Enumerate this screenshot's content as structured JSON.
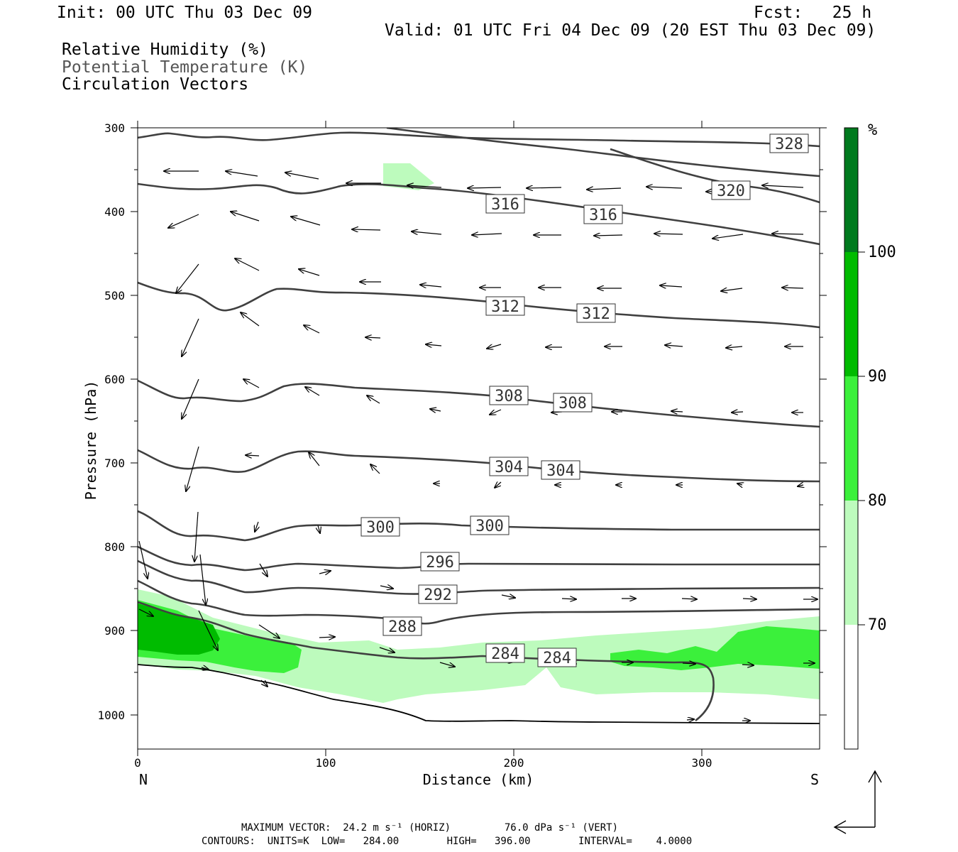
{
  "header": {
    "init": "Init: 00 UTC Thu 03 Dec 09",
    "fcst": "Fcst:   25 h",
    "valid": "Valid: 01 UTC Fri 04 Dec 09 (20 EST Thu 03 Dec 09)",
    "legend_lines": [
      "Relative Humidity (%)",
      "Potential Temperature (K)",
      "Circulation Vectors"
    ]
  },
  "footer": {
    "max_vector": "MAXIMUM VECTOR:  24.2 m s⁻¹ (HORIZ)         76.0 dPa s⁻¹ (VERT)",
    "contours": "CONTOURS:  UNITS=K  LOW=   284.00        HIGH=   396.00        INTERVAL=    4.0000"
  },
  "colors": {
    "rh_70_80": "#bdfbbd",
    "rh_80_90": "#3bf03b",
    "rh_90_100": "#00bb00",
    "rh_100": "#007a1e",
    "theta_line": "#404040",
    "vector": "#000000"
  },
  "chart_data": {
    "type": "cross-section",
    "xlabel": "Distance (km)",
    "ylabel": "Pressure (hPa)",
    "xlim": [
      0,
      362
    ],
    "ylim": [
      1040,
      300
    ],
    "y_log_like_inverted": true,
    "x_ticks": [
      0,
      100,
      200,
      300
    ],
    "y_ticks": [
      300,
      400,
      500,
      600,
      700,
      800,
      900,
      1000
    ],
    "x_end_labels": {
      "left": "N",
      "right": "S"
    },
    "colorbar": {
      "unit": "%",
      "levels": [
        70,
        80,
        90,
        100
      ]
    },
    "theta_contours": [
      {
        "value": 328,
        "label_km": 346,
        "points": [
          [
            0,
            313
          ],
          [
            40,
            307
          ],
          [
            80,
            311
          ],
          [
            120,
            305
          ],
          [
            180,
            306
          ],
          [
            260,
            312
          ],
          [
            362,
            323
          ]
        ]
      },
      {
        "value": 320,
        "label_km": 313,
        "points": [
          [
            131,
            300
          ],
          [
            200,
            320
          ],
          [
            270,
            333
          ],
          [
            310,
            340
          ],
          [
            362,
            357
          ]
        ]
      },
      {
        "value": 316,
        "label_km": 196,
        "points": [
          [
            0,
            367
          ],
          [
            30,
            374
          ],
          [
            58,
            368
          ],
          [
            85,
            380
          ],
          [
            110,
            371
          ],
          [
            150,
            372
          ],
          [
            196,
            375
          ],
          [
            240,
            383
          ],
          [
            300,
            397
          ],
          [
            362,
            386
          ]
        ]
      },
      {
        "value": 316,
        "label_km": 247,
        "points": []
      },
      {
        "value": 312,
        "label_km": 196,
        "points": [
          [
            0,
            485
          ],
          [
            20,
            496
          ],
          [
            48,
            517
          ],
          [
            75,
            490
          ],
          [
            120,
            494
          ],
          [
            196,
            502
          ],
          [
            240,
            505
          ],
          [
            300,
            515
          ],
          [
            362,
            539
          ]
        ]
      },
      {
        "value": 312,
        "label_km": 243,
        "points": []
      },
      {
        "value": 308,
        "label_km": 197,
        "points": [
          [
            0,
            600
          ],
          [
            25,
            623
          ],
          [
            55,
            625
          ],
          [
            85,
            602
          ],
          [
            130,
            608
          ],
          [
            197,
            615
          ],
          [
            250,
            624
          ],
          [
            320,
            645
          ],
          [
            362,
            655
          ]
        ]
      },
      {
        "value": 308,
        "label_km": 231,
        "points": []
      },
      {
        "value": 304,
        "label_km": 197,
        "points": [
          [
            0,
            681
          ],
          [
            25,
            707
          ],
          [
            57,
            712
          ],
          [
            85,
            690
          ],
          [
            130,
            690
          ],
          [
            197,
            698
          ],
          [
            250,
            703
          ],
          [
            320,
            717
          ],
          [
            362,
            720
          ]
        ]
      },
      {
        "value": 304,
        "label_km": 225,
        "points": []
      },
      {
        "value": 300,
        "label_km": 129,
        "points": [
          [
            0,
            755
          ],
          [
            25,
            782
          ],
          [
            58,
            793
          ],
          [
            85,
            775
          ],
          [
            129,
            770
          ],
          [
            160,
            765
          ],
          [
            200,
            772
          ],
          [
            362,
            778
          ]
        ]
      },
      {
        "value": 300,
        "label_km": 187,
        "points": []
      },
      {
        "value": 296,
        "label_km": 161,
        "points": [
          [
            0,
            783
          ],
          [
            25,
            803
          ],
          [
            55,
            808
          ],
          [
            85,
            805
          ],
          [
            161,
            812
          ],
          [
            200,
            815
          ],
          [
            362,
            820
          ]
        ]
      },
      {
        "value": 292,
        "label_km": 159,
        "points": [
          [
            0,
            810
          ],
          [
            25,
            828
          ],
          [
            55,
            835
          ],
          [
            85,
            830
          ],
          [
            159,
            840
          ],
          [
            200,
            846
          ],
          [
            362,
            846
          ]
        ]
      },
      {
        "value": 288,
        "label_km": 140,
        "points": [
          [
            0,
            840
          ],
          [
            30,
            870
          ],
          [
            70,
            880
          ],
          [
            110,
            878
          ],
          [
            140,
            885
          ],
          [
            200,
            875
          ],
          [
            362,
            865
          ]
        ]
      },
      {
        "value": 284,
        "label_km": 195,
        "points": [
          [
            0,
            870
          ],
          [
            40,
            895
          ],
          [
            90,
            915
          ],
          [
            140,
            930
          ],
          [
            195,
            930
          ],
          [
            250,
            932
          ],
          [
            305,
            940
          ],
          [
            300,
            1005
          ]
        ]
      },
      {
        "value": 284,
        "label_km": 223,
        "points": []
      }
    ],
    "theta_labels": [
      328,
      320,
      316,
      316,
      312,
      312,
      308,
      308,
      304,
      304,
      300,
      300,
      296,
      292,
      288,
      284,
      284
    ]
  }
}
